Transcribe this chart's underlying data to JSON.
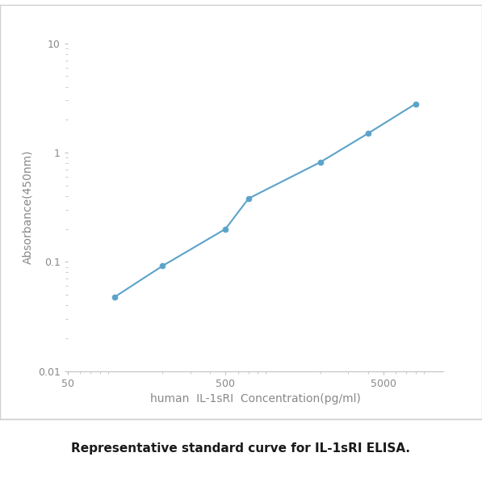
{
  "x_values": [
    100,
    200,
    500,
    700,
    2000,
    4000,
    8000
  ],
  "y_values": [
    0.048,
    0.092,
    0.2,
    0.38,
    0.82,
    1.5,
    2.8
  ],
  "line_color": "#5ba3c9",
  "marker_color": "#5ba3c9",
  "marker_style": "o",
  "marker_size": 5,
  "linewidth": 1.5,
  "xlabel": "human  IL-1sRI  Concentration(pg/ml)",
  "ylabel": "Absorbance(450nm)",
  "xlim": [
    50,
    12000
  ],
  "ylim": [
    0.01,
    10
  ],
  "xticks": [
    50,
    500,
    5000
  ],
  "yticks": [
    0.01,
    0.1,
    1,
    10
  ],
  "caption": "Representative standard curve for IL-1sRI ELISA.",
  "background_color": "#ffffff",
  "axes_background": "#ffffff",
  "outer_border_color": "#d0d0d0",
  "spine_color": "#c0c0c0",
  "tick_color": "#c0c0c0",
  "label_color": "#888888",
  "tick_label_color": "#888888",
  "label_fontsize": 10,
  "tick_fontsize": 9,
  "caption_fontsize": 11
}
